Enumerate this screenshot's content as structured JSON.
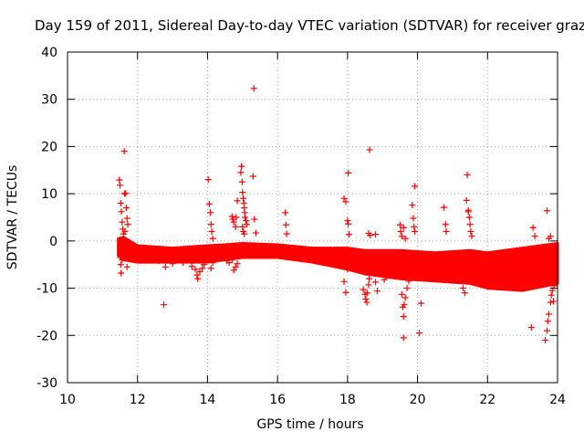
{
  "chart_data": {
    "type": "scatter",
    "title": "Day 159 of 2011, Sidereal Day-to-day VTEC variation (SDTVAR) for receiver graz",
    "xlabel": "GPS time / hours",
    "ylabel": "SDTVAR / TECUs",
    "xlim": [
      10,
      24
    ],
    "ylim": [
      -30,
      40
    ],
    "x_ticks": [
      10,
      12,
      14,
      16,
      18,
      20,
      22,
      24
    ],
    "y_ticks": [
      -30,
      -20,
      -10,
      0,
      10,
      20,
      30,
      40
    ],
    "x_tick_labels": [
      "10",
      "12",
      "14",
      "16",
      "18",
      "20",
      "22",
      "24"
    ],
    "y_tick_labels": [
      "-30",
      "-20",
      "-10",
      "0",
      "10",
      "20",
      "30",
      "40"
    ],
    "grid": true,
    "marker": "+",
    "series_color": "#ff0000",
    "band_envelope": {
      "x": [
        11.45,
        11.6,
        12.0,
        13.0,
        14.0,
        14.5,
        15.0,
        16.0,
        17.0,
        18.0,
        18.5,
        19.5,
        20.5,
        21.5,
        22.0,
        23.0,
        24.0
      ],
      "upper": [
        0.5,
        0.8,
        -1.0,
        -1.5,
        -1.0,
        -0.8,
        -0.5,
        -0.8,
        -1.5,
        -1.5,
        -2.0,
        -2.0,
        -2.5,
        -2.0,
        -2.5,
        -1.5,
        -0.5
      ],
      "lower": [
        -3.0,
        -4.0,
        -4.5,
        -4.5,
        -4.5,
        -4.0,
        -3.5,
        -3.5,
        -4.5,
        -6.0,
        -7.0,
        -8.0,
        -8.5,
        -9.0,
        -10.0,
        -10.5,
        -9.0
      ]
    },
    "points": [
      [
        11.48,
        12.9
      ],
      [
        11.5,
        11.8
      ],
      [
        11.52,
        8.0
      ],
      [
        11.54,
        6.2
      ],
      [
        11.56,
        4.0
      ],
      [
        11.58,
        2.5
      ],
      [
        11.6,
        1.5
      ],
      [
        11.5,
        -3.5
      ],
      [
        11.52,
        -5.0
      ],
      [
        11.53,
        -6.8
      ],
      [
        11.56,
        -4.0
      ],
      [
        11.6,
        -2.8
      ],
      [
        11.62,
        19.0
      ],
      [
        11.63,
        10.0
      ],
      [
        11.66,
        10.1
      ],
      [
        11.68,
        7.0
      ],
      [
        11.7,
        4.8
      ],
      [
        11.72,
        3.5
      ],
      [
        11.64,
        2.0
      ],
      [
        11.66,
        -1.0
      ],
      [
        11.7,
        -5.5
      ],
      [
        11.75,
        -3.0
      ],
      [
        12.1,
        -3.5
      ],
      [
        12.2,
        -4.0
      ],
      [
        12.6,
        -4.2
      ],
      [
        12.75,
        -13.5
      ],
      [
        12.8,
        -5.5
      ],
      [
        12.85,
        -4.0
      ],
      [
        12.9,
        -3.5
      ],
      [
        13.0,
        -4.8
      ],
      [
        13.3,
        -4.6
      ],
      [
        13.55,
        -5.4
      ],
      [
        13.65,
        -6.0
      ],
      [
        13.7,
        -7.2
      ],
      [
        13.72,
        -8.0
      ],
      [
        13.78,
        -6.5
      ],
      [
        13.85,
        -5.8
      ],
      [
        13.9,
        -5.0
      ],
      [
        14.02,
        13.0
      ],
      [
        14.05,
        7.8
      ],
      [
        14.08,
        6.0
      ],
      [
        14.1,
        3.5
      ],
      [
        14.12,
        2.0
      ],
      [
        14.15,
        0.5
      ],
      [
        14.05,
        -3.0
      ],
      [
        14.1,
        -5.8
      ],
      [
        14.15,
        -4.6
      ],
      [
        14.2,
        -3.5
      ],
      [
        14.55,
        -4.2
      ],
      [
        14.62,
        -4.6
      ],
      [
        14.7,
        -4.0
      ],
      [
        14.7,
        5.2
      ],
      [
        14.72,
        4.6
      ],
      [
        14.75,
        4.0
      ],
      [
        14.8,
        3.0
      ],
      [
        14.82,
        5.0
      ],
      [
        14.85,
        8.5
      ],
      [
        14.75,
        -6.2
      ],
      [
        14.8,
        -5.5
      ],
      [
        14.85,
        -4.8
      ],
      [
        14.95,
        14.5
      ],
      [
        14.97,
        15.8
      ],
      [
        14.99,
        12.5
      ],
      [
        15.0,
        10.3
      ],
      [
        15.02,
        9.0
      ],
      [
        15.04,
        8.0
      ],
      [
        15.05,
        7.0
      ],
      [
        15.06,
        6.0
      ],
      [
        15.07,
        5.0
      ],
      [
        15.0,
        3.0
      ],
      [
        15.02,
        2.0
      ],
      [
        15.05,
        1.5
      ],
      [
        15.1,
        4.3
      ],
      [
        15.12,
        3.5
      ],
      [
        15.32,
        32.3
      ],
      [
        15.3,
        13.7
      ],
      [
        15.34,
        4.6
      ],
      [
        15.38,
        1.7
      ],
      [
        16.22,
        6.0
      ],
      [
        16.24,
        3.4
      ],
      [
        16.26,
        1.5
      ],
      [
        17.9,
        9.0
      ],
      [
        17.95,
        8.3
      ],
      [
        18.0,
        4.3
      ],
      [
        18.02,
        3.6
      ],
      [
        18.04,
        1.4
      ],
      [
        17.9,
        -8.6
      ],
      [
        17.95,
        -10.9
      ],
      [
        18.0,
        -6.0
      ],
      [
        18.02,
        14.4
      ],
      [
        18.45,
        -10.3
      ],
      [
        18.5,
        -11.3
      ],
      [
        18.52,
        -12.3
      ],
      [
        18.55,
        -13.0
      ],
      [
        18.56,
        -11.0
      ],
      [
        18.6,
        -9.3
      ],
      [
        18.62,
        -8.0
      ],
      [
        18.63,
        19.3
      ],
      [
        18.6,
        1.6
      ],
      [
        18.65,
        1.2
      ],
      [
        18.8,
        1.4
      ],
      [
        18.8,
        -8.7
      ],
      [
        18.85,
        -10.6
      ],
      [
        19.05,
        -8.2
      ],
      [
        19.1,
        -7.5
      ],
      [
        19.5,
        3.4
      ],
      [
        19.52,
        2.0
      ],
      [
        19.55,
        1.0
      ],
      [
        19.6,
        2.8
      ],
      [
        19.65,
        0.5
      ],
      [
        19.55,
        -11.3
      ],
      [
        19.58,
        -14.0
      ],
      [
        19.6,
        -16.0
      ],
      [
        19.62,
        -13.5
      ],
      [
        19.65,
        -12.0
      ],
      [
        19.6,
        -20.5
      ],
      [
        19.7,
        -10.0
      ],
      [
        19.75,
        -8.5
      ],
      [
        19.85,
        7.6
      ],
      [
        19.88,
        4.8
      ],
      [
        19.9,
        3.0
      ],
      [
        19.92,
        2.0
      ],
      [
        19.92,
        11.6
      ],
      [
        20.05,
        -19.5
      ],
      [
        20.1,
        -13.2
      ],
      [
        20.75,
        7.1
      ],
      [
        20.8,
        3.5
      ],
      [
        20.82,
        2.0
      ],
      [
        21.3,
        -10.0
      ],
      [
        21.35,
        -11.0
      ],
      [
        21.4,
        8.6
      ],
      [
        21.42,
        14.0
      ],
      [
        21.45,
        6.2
      ],
      [
        21.48,
        5.0
      ],
      [
        21.5,
        3.5
      ],
      [
        21.52,
        2.0
      ],
      [
        21.55,
        1.0
      ],
      [
        21.45,
        6.5
      ],
      [
        23.25,
        -18.3
      ],
      [
        23.3,
        2.8
      ],
      [
        23.35,
        1.0
      ],
      [
        23.7,
        6.4
      ],
      [
        23.75,
        0.5
      ],
      [
        23.8,
        1.0
      ],
      [
        23.65,
        -21.0
      ],
      [
        23.7,
        -19.0
      ],
      [
        23.72,
        -17.0
      ],
      [
        23.75,
        -15.5
      ],
      [
        23.8,
        -13.0
      ],
      [
        23.82,
        -11.5
      ],
      [
        23.85,
        -10.5
      ],
      [
        23.88,
        -12.8
      ],
      [
        23.9,
        -9.5
      ],
      [
        23.95,
        -8.0
      ]
    ]
  }
}
